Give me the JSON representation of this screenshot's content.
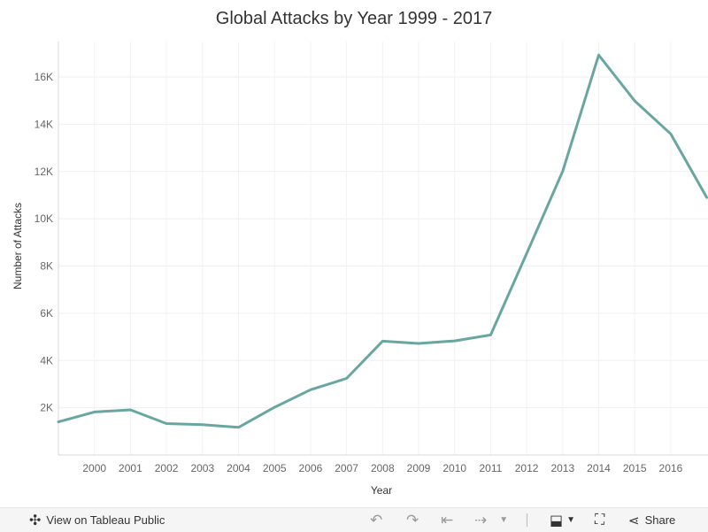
{
  "chart_data": {
    "type": "line",
    "title": "Global Attacks by Year 1999 - 2017",
    "xlabel": "Year",
    "ylabel": "Number of Attacks",
    "x": [
      1999,
      2000,
      2001,
      2002,
      2003,
      2004,
      2005,
      2006,
      2007,
      2008,
      2009,
      2010,
      2011,
      2012,
      2013,
      2014,
      2015,
      2016,
      2017
    ],
    "series": [
      {
        "values": [
          1400,
          1820,
          1910,
          1330,
          1280,
          1170,
          2020,
          2760,
          3240,
          4820,
          4720,
          4830,
          5080,
          8530,
          12010,
          16930,
          14990,
          13590,
          10900
        ]
      }
    ],
    "x_tick_labels": [
      "2000",
      "2001",
      "2002",
      "2003",
      "2004",
      "2005",
      "2006",
      "2007",
      "2008",
      "2009",
      "2010",
      "2011",
      "2012",
      "2013",
      "2014",
      "2015",
      "2016"
    ],
    "y_ticks": [
      2000,
      4000,
      6000,
      8000,
      10000,
      12000,
      14000,
      16000
    ],
    "y_tick_labels": [
      "2K",
      "4K",
      "6K",
      "8K",
      "10K",
      "12K",
      "14K",
      "16K"
    ],
    "ylim": [
      0,
      17500
    ],
    "grid": true,
    "line_color": "#69a6a2"
  },
  "toolbar": {
    "view_label": "View on Tableau Public",
    "share_label": "Share",
    "icons": [
      "tableau-logo-icon",
      "undo-icon",
      "redo-icon",
      "revert-icon",
      "refresh-icon",
      "download-icon",
      "fullscreen-icon",
      "share-icon"
    ]
  }
}
